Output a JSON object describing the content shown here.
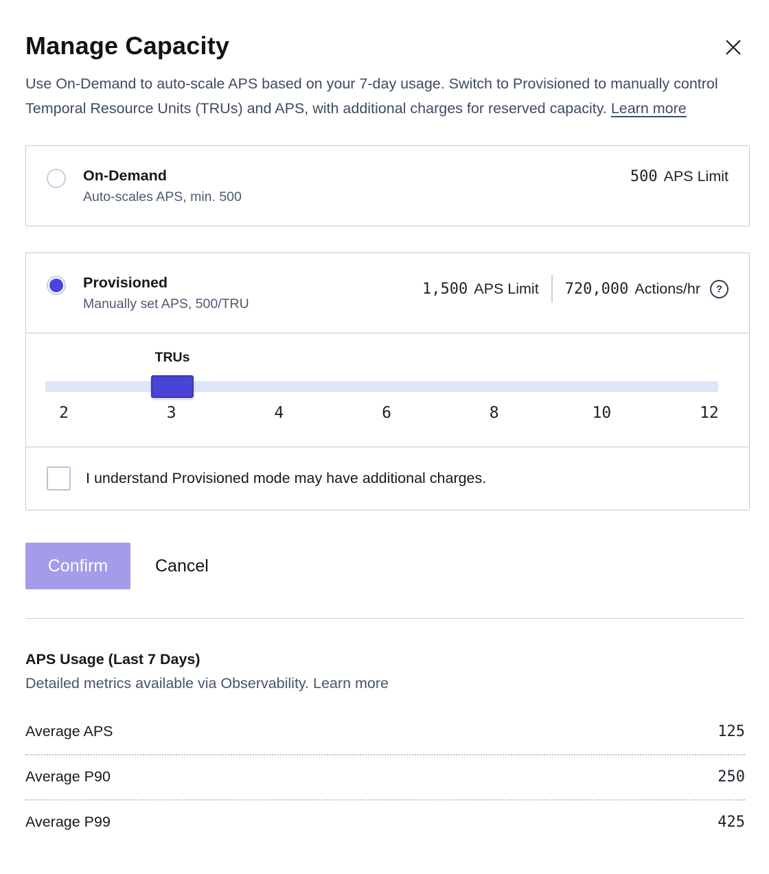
{
  "dialog": {
    "title": "Manage Capacity",
    "description": "Use On-Demand to auto-scale APS based on your 7-day usage. Switch to Provisioned to manually control Temporal Resource Units (TRUs) and APS, with additional charges for reserved capacity.",
    "description_link": "Learn more"
  },
  "on_demand": {
    "label": "On-Demand",
    "sublabel": "Auto-scales APS, min. 500",
    "aps_value": "500",
    "aps_unit": "APS Limit",
    "selected": false
  },
  "provisioned": {
    "label": "Provisioned",
    "sublabel": "Manually set APS, 500/TRU",
    "aps_value": "1,500",
    "aps_unit": "APS Limit",
    "actions_value": "720,000",
    "actions_unit": "Actions/hr",
    "help_icon": "?",
    "selected": true
  },
  "slider": {
    "label": "TRUs",
    "value": 3,
    "min": 2,
    "max": 12,
    "ticks": [
      "2",
      "3",
      "4",
      "6",
      "8",
      "10",
      "12"
    ]
  },
  "checkbox": {
    "label": "I understand Provisioned mode may have additional charges.",
    "checked": false
  },
  "actions": {
    "confirm_label": "Confirm",
    "cancel_label": "Cancel"
  },
  "usage": {
    "title": "APS Usage (Last 7 Days)",
    "subtitle": "Detailed metrics available via Observability.",
    "subtitle_link": "Learn more",
    "rows": [
      {
        "label": "Average APS",
        "value": "125"
      },
      {
        "label": "Average P90",
        "value": "250"
      },
      {
        "label": "Average P99",
        "value": "425"
      }
    ]
  },
  "colors": {
    "accent": "#4a43dd",
    "accent_border": "#3b38ab",
    "confirm_disabled": "#a29ceb",
    "card_border": "#c0cbdc",
    "track": "#dde7f8",
    "body_text": "#3e4b61"
  }
}
